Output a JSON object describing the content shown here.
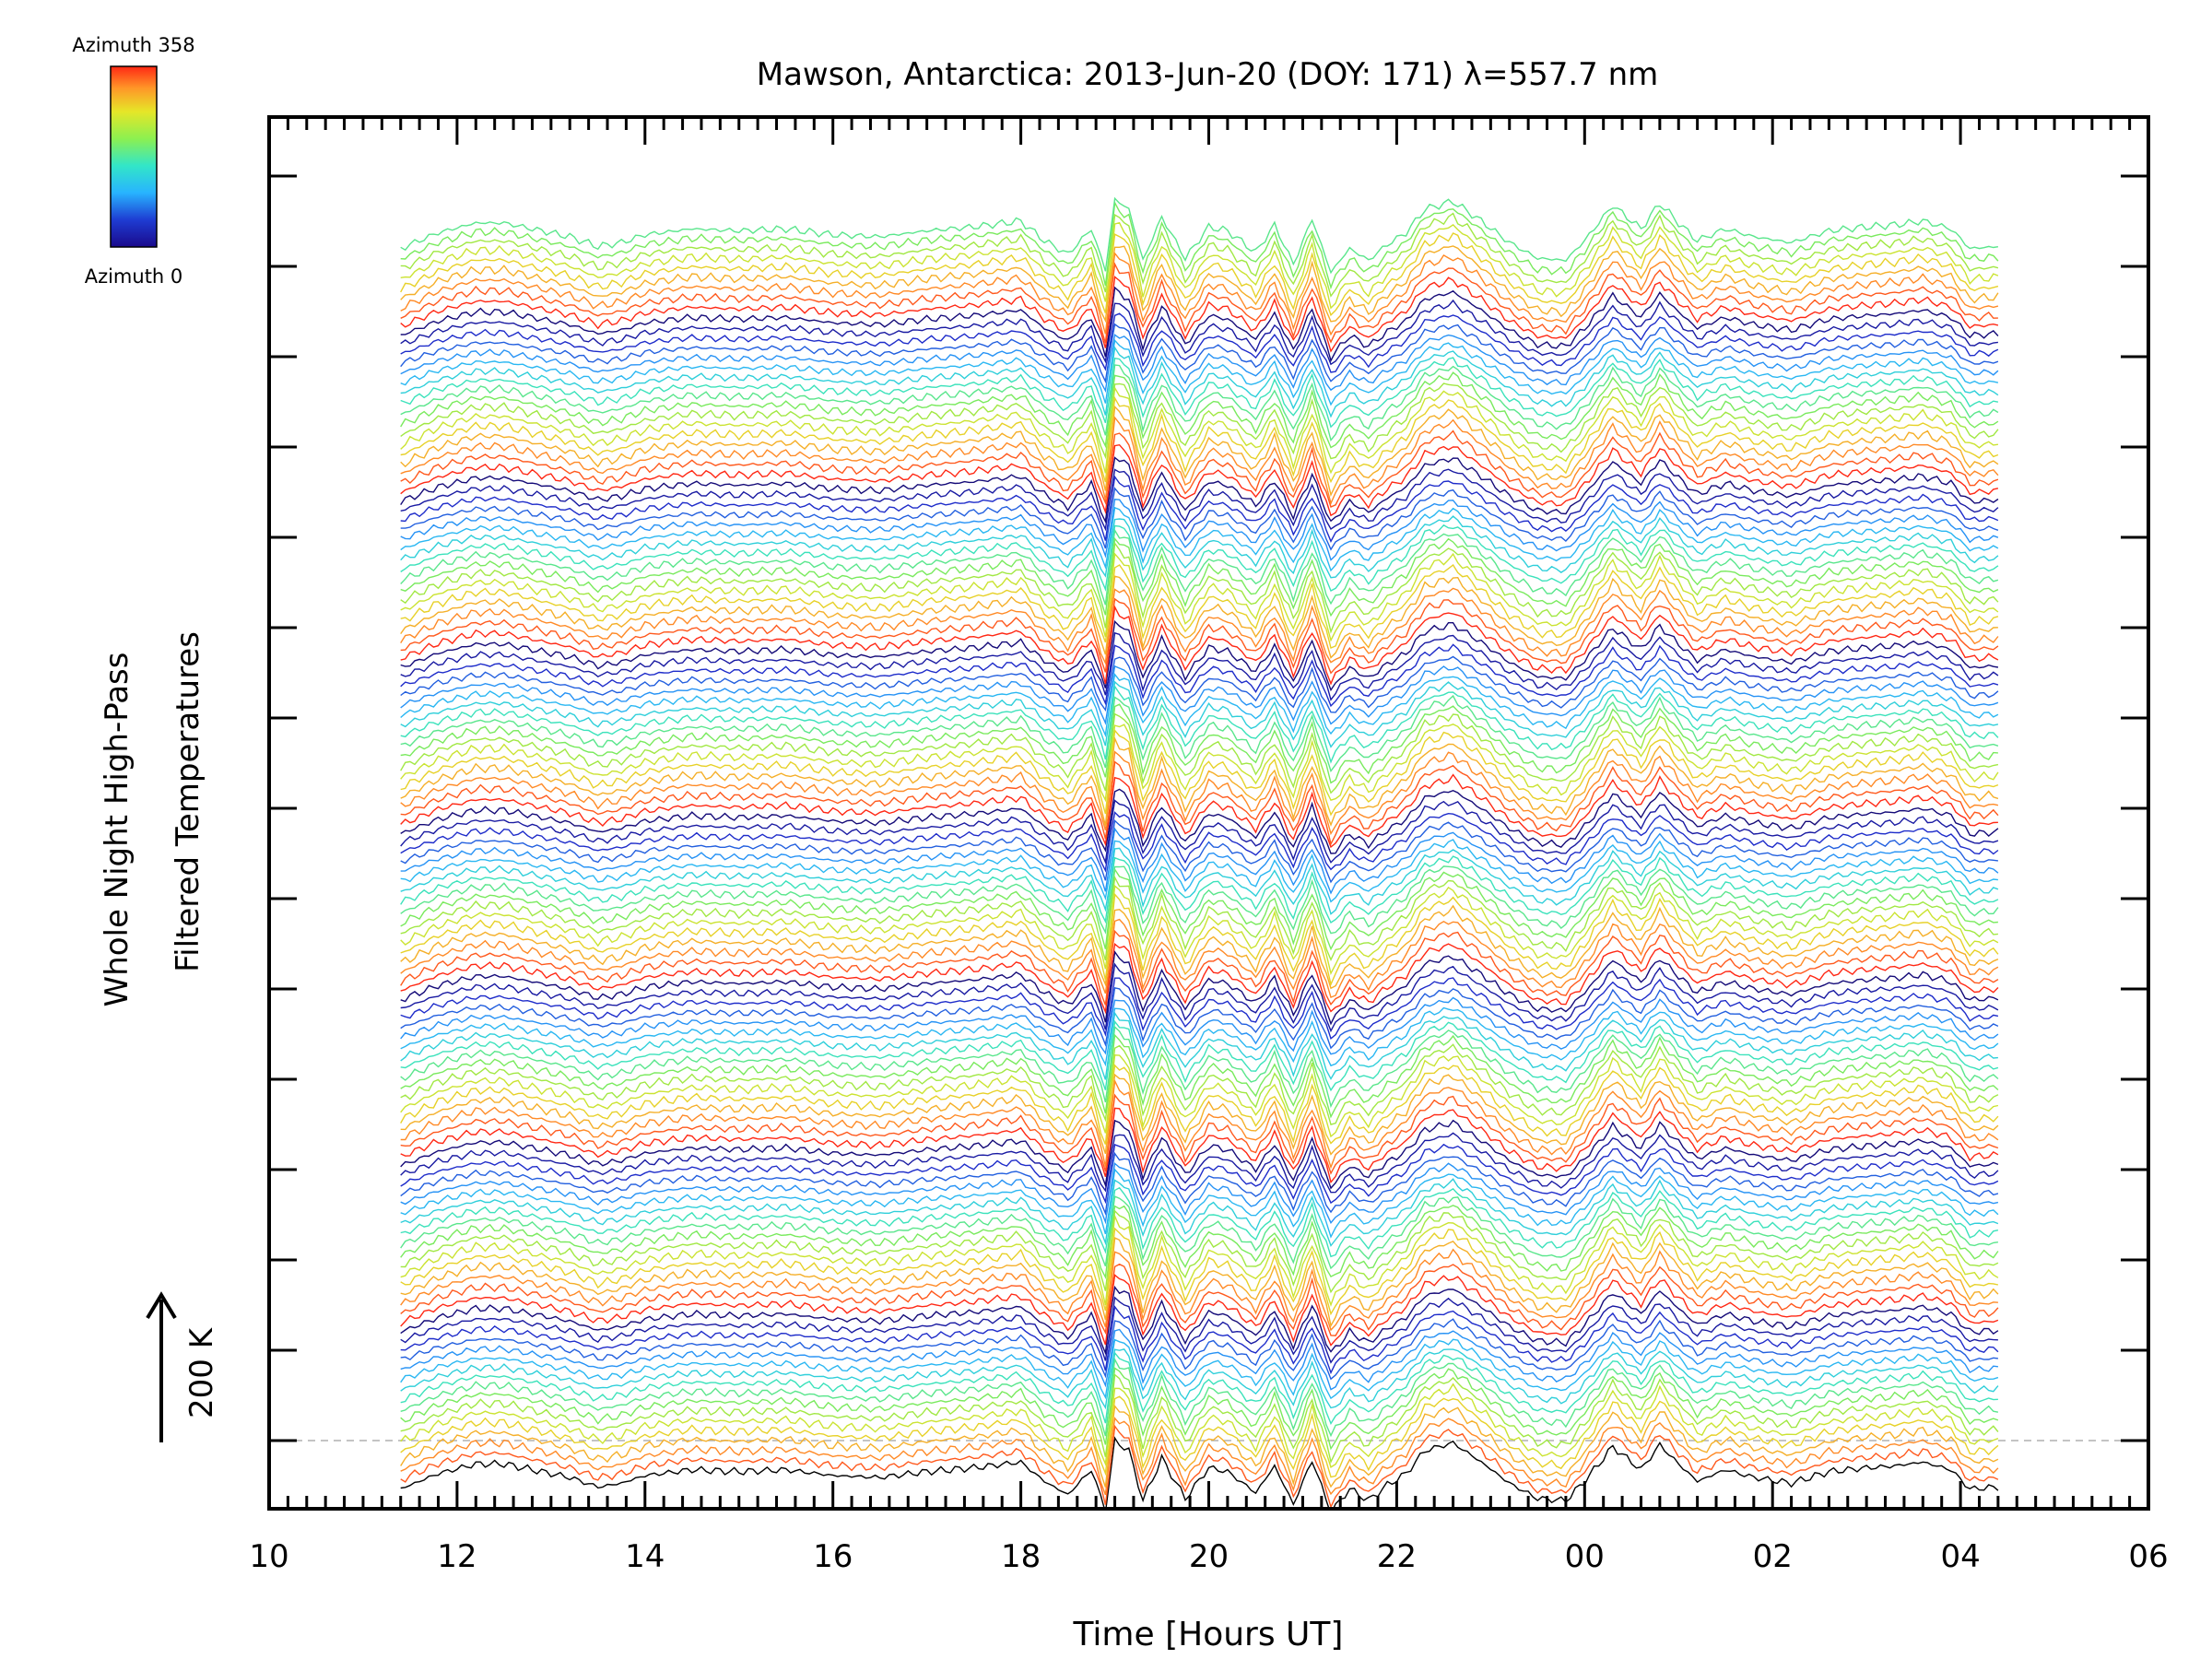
{
  "chart_data": {
    "type": "line",
    "title": "Mawson, Antarctica: 2013-Jun-20 (DOY: 171) λ=557.7 nm",
    "xlabel": "Time [Hours UT]",
    "ylabel_line1": "Whole Night High-Pass",
    "ylabel_line2": "Filtered Temperatures",
    "scale_label": "200 K",
    "xlim": [
      10,
      30
    ],
    "x_tick_labels": [
      "10",
      "12",
      "14",
      "16",
      "18",
      "20",
      "22",
      "00",
      "02",
      "04",
      "06"
    ],
    "data_start_hour": 11.4,
    "data_end_hour": 28.4,
    "grid": false,
    "colorbar": {
      "top_label": "Azimuth  358",
      "bottom_label": "Azimuth  0",
      "azimuth_min": 0,
      "azimuth_max": 358
    },
    "series_count": 128,
    "series_note": "stacked azimuth traces, offset vertically",
    "colors": {
      "axes": "#000000",
      "baseline": "#b0b0b0"
    },
    "common_profile": {
      "hours": [
        11.4,
        11.8,
        12.2,
        12.5,
        12.8,
        13.2,
        13.5,
        13.75,
        14.0,
        14.5,
        15.0,
        15.5,
        16.0,
        16.5,
        17.0,
        17.5,
        18.0,
        18.25,
        18.5,
        18.75,
        18.9,
        19.0,
        19.15,
        19.3,
        19.5,
        19.75,
        20.0,
        20.2,
        20.5,
        20.7,
        20.9,
        21.1,
        21.3,
        21.5,
        21.7,
        21.9,
        22.1,
        22.3,
        22.6,
        22.9,
        23.2,
        23.5,
        23.8,
        24.0,
        24.3,
        24.6,
        24.8,
        25.0,
        25.2,
        25.5,
        25.8,
        26.2,
        26.6,
        27.0,
        27.3,
        27.6,
        27.9,
        28.1,
        28.4
      ],
      "values": [
        -30,
        10,
        35,
        35,
        20,
        0,
        -25,
        -15,
        5,
        20,
        15,
        20,
        5,
        0,
        15,
        25,
        40,
        -10,
        -45,
        20,
        -85,
        95,
        70,
        -60,
        50,
        -55,
        25,
        15,
        -40,
        30,
        -70,
        45,
        -90,
        -30,
        -60,
        -20,
        10,
        70,
        90,
        40,
        -15,
        -55,
        -60,
        -10,
        80,
        20,
        85,
        35,
        -10,
        20,
        0,
        -15,
        15,
        25,
        30,
        40,
        20,
        -30,
        -25
      ]
    }
  }
}
